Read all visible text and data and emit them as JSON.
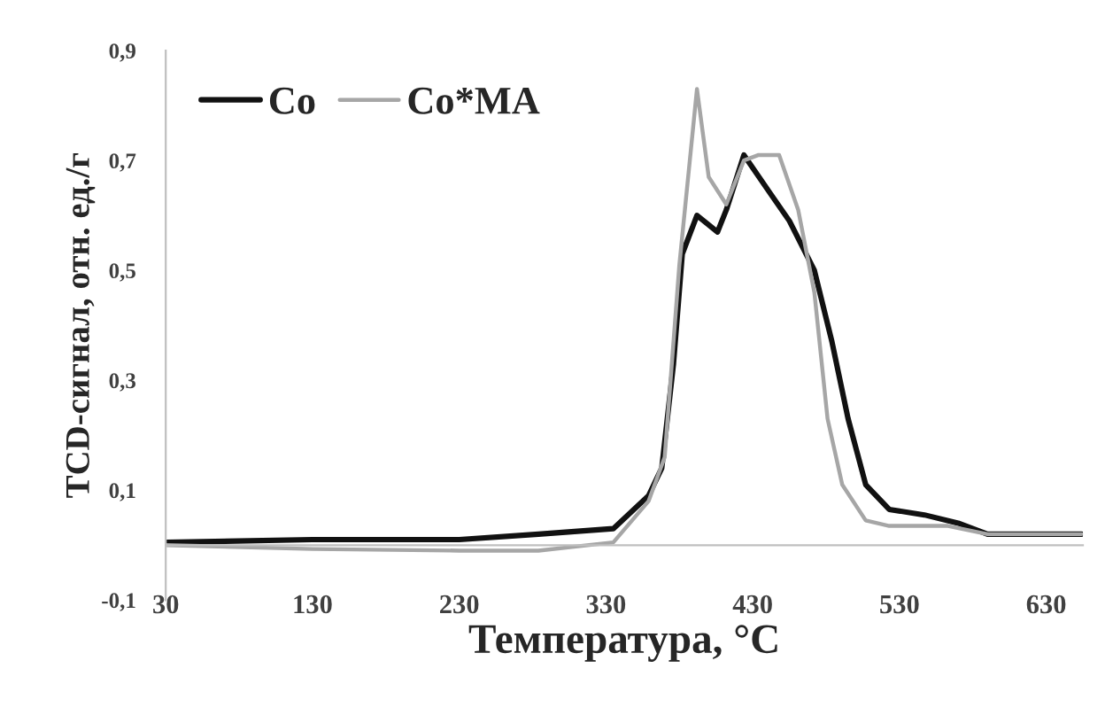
{
  "chart_data": {
    "type": "line",
    "xlabel": "Температура, °C",
    "ylabel": "TCD-сигнал, отн. ед./г",
    "xlim": [
      30,
      655
    ],
    "xticks": [
      30,
      130,
      230,
      330,
      430,
      530,
      630
    ],
    "ylim": [
      -0.1,
      0.9
    ],
    "yticks": [
      {
        "value": -0.1,
        "label": "-0,1"
      },
      {
        "value": 0.1,
        "label": "0,1"
      },
      {
        "value": 0.3,
        "label": "0,3"
      },
      {
        "value": 0.5,
        "label": "0,5"
      },
      {
        "value": 0.7,
        "label": "0,7"
      },
      {
        "value": 0.9,
        "label": "0,9"
      }
    ],
    "grid": false,
    "legend": "top left",
    "marker": "none",
    "line_style": "solid",
    "series": [
      {
        "name": "Co",
        "color": "#111111",
        "x": [
          30,
          130,
          230,
          284,
          335,
          359,
          368,
          376,
          382,
          392,
          406,
          412,
          424,
          442,
          455,
          472,
          484,
          495,
          507,
          523,
          547,
          570,
          590,
          654
        ],
        "values": [
          0.005,
          0.01,
          0.01,
          0.02,
          0.03,
          0.09,
          0.14,
          0.33,
          0.53,
          0.6,
          0.57,
          0.61,
          0.71,
          0.64,
          0.59,
          0.5,
          0.37,
          0.23,
          0.11,
          0.065,
          0.055,
          0.04,
          0.02,
          0.02
        ]
      },
      {
        "name": "Co*MA",
        "color": "#a6a6a6",
        "x": [
          30,
          130,
          230,
          284,
          335,
          359,
          370,
          380,
          392,
          400,
          412,
          424,
          434,
          448,
          461,
          472,
          481,
          491,
          507,
          523,
          563,
          590,
          654
        ],
        "values": [
          0.0,
          -0.007,
          -0.01,
          -0.01,
          0.005,
          0.08,
          0.16,
          0.51,
          0.83,
          0.67,
          0.62,
          0.7,
          0.71,
          0.71,
          0.61,
          0.46,
          0.23,
          0.11,
          0.045,
          0.035,
          0.035,
          0.02,
          0.02
        ]
      }
    ]
  }
}
